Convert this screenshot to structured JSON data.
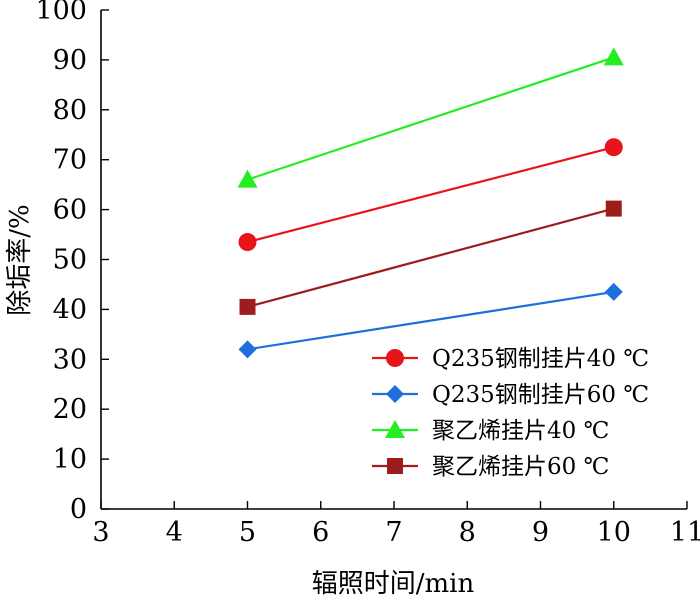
{
  "chart_data": {
    "type": "line",
    "title": "",
    "xlabel": "辐照时间/min",
    "ylabel": "除垢率/%",
    "xlim": [
      3,
      11
    ],
    "ylim": [
      0,
      100
    ],
    "xticks": [
      3,
      4,
      5,
      6,
      7,
      8,
      9,
      10,
      11
    ],
    "yticks": [
      0,
      10,
      20,
      30,
      40,
      50,
      60,
      70,
      80,
      90,
      100
    ],
    "grid": false,
    "legend_position": "bottom-right",
    "series": [
      {
        "name": "Q235钢制挂片40 ℃",
        "x": [
          5,
          10
        ],
        "y": [
          53.5,
          72.5
        ],
        "color": "#e8141b",
        "marker": "circle"
      },
      {
        "name": "Q235钢制挂片60 ℃",
        "x": [
          5,
          10
        ],
        "y": [
          32,
          43.5
        ],
        "color": "#1e6fdc",
        "marker": "diamond"
      },
      {
        "name": "聚乙烯挂片40 ℃",
        "x": [
          5,
          10
        ],
        "y": [
          66,
          90.5
        ],
        "color": "#22ee22",
        "marker": "triangle"
      },
      {
        "name": "聚乙烯挂片60 ℃",
        "x": [
          5,
          10
        ],
        "y": [
          40.5,
          60.2
        ],
        "color": "#9e1c1c",
        "marker": "square"
      }
    ]
  }
}
